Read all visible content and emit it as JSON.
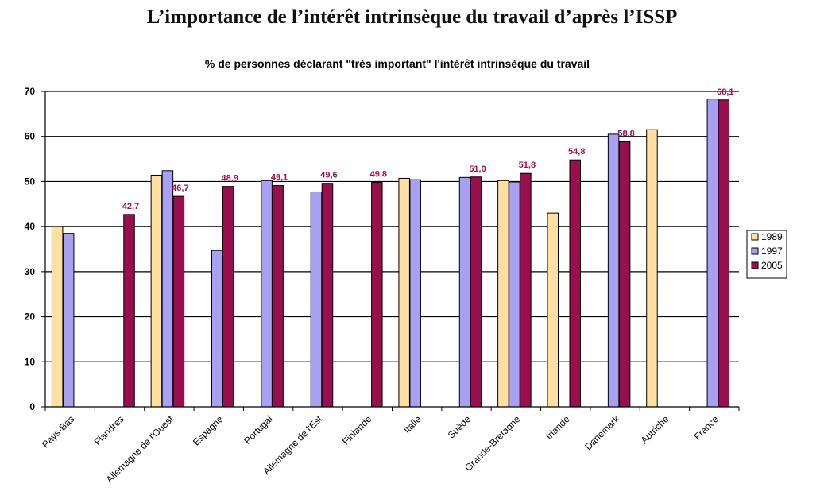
{
  "chart_data": {
    "type": "bar",
    "title": "L’importance de l’intérêt intrinsèque du travail d’après l’ISSP",
    "subtitle": "% de personnes déclarant \"très important\" l'intérêt intrinsèque du travail",
    "xlabel": "",
    "ylabel": "",
    "ylim": [
      0,
      70
    ],
    "yticks": [
      "0",
      "10",
      "20",
      "30",
      "40",
      "50",
      "60",
      "70"
    ],
    "grid": true,
    "legend_position": "right",
    "categories": [
      "Pays-Bas",
      "Flandres",
      "Allemagne de l'Ouest",
      "Espagne",
      "Portugal",
      "Allemagne de l'Est",
      "Finlande",
      "Italie",
      "Suède",
      "Grande-Bretagne",
      "Irlande",
      "Danemark",
      "Autriche",
      "France"
    ],
    "series": [
      {
        "name": "1989",
        "color": "#FFE0A0",
        "values": [
          40.0,
          null,
          51.4,
          null,
          null,
          null,
          null,
          50.7,
          null,
          50.2,
          43.0,
          null,
          61.5,
          null
        ]
      },
      {
        "name": "1997",
        "color": "#A8A0F0",
        "values": [
          38.5,
          null,
          52.4,
          34.7,
          50.2,
          47.7,
          null,
          50.4,
          50.9,
          49.9,
          null,
          60.5,
          null,
          68.3
        ]
      },
      {
        "name": "2005",
        "color": "#990F4D",
        "values": [
          null,
          42.7,
          46.7,
          48.9,
          49.1,
          49.6,
          49.8,
          null,
          51.0,
          51.8,
          54.8,
          58.8,
          null,
          68.1
        ]
      }
    ],
    "data_labels": [
      "42,7",
      "46,7",
      "48,9",
      "49,1",
      "49,6",
      "49,8",
      "51,0",
      "51,8",
      "54,8",
      "58,8",
      "68,1"
    ],
    "label_color": "#A0104E"
  }
}
